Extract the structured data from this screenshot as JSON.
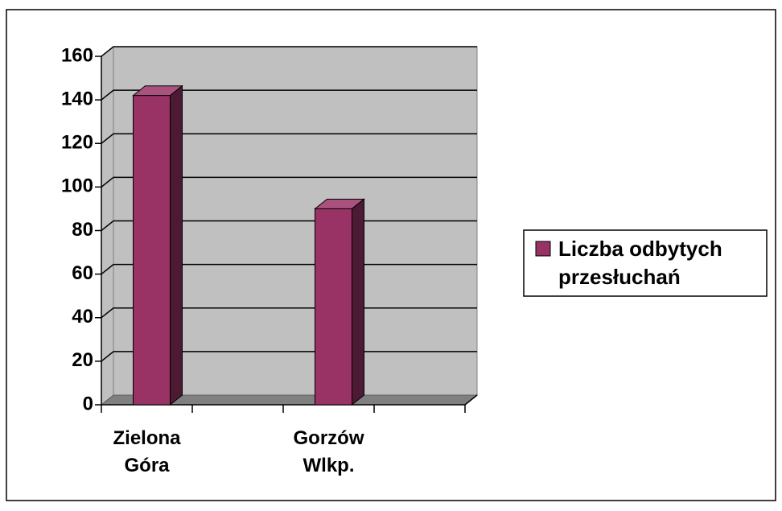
{
  "chart_data": {
    "type": "bar",
    "categories": [
      "Zielona Góra",
      "Gorzów Wlkp."
    ],
    "series": [
      {
        "name": "Liczba odbytych przesłuchań",
        "color": "#993366",
        "values": [
          142,
          90
        ]
      }
    ],
    "ylim": [
      0,
      160
    ],
    "yticks": [
      0,
      20,
      40,
      60,
      80,
      100,
      120,
      140,
      160
    ],
    "grid": true,
    "legend": "right"
  }
}
